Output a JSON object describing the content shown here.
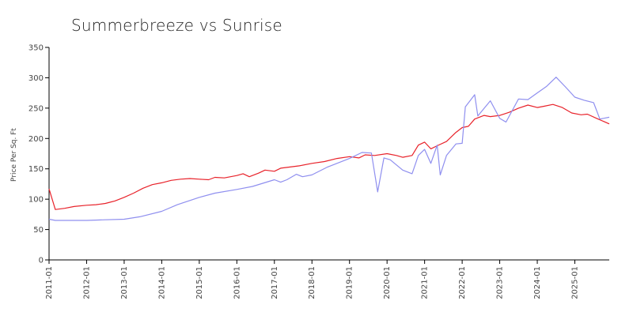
{
  "chart_data": {
    "type": "line",
    "title": "Summerbreeze vs Sunrise",
    "xlabel": "",
    "ylabel": "Price Per Sq. Ft",
    "x_start": "2011-01",
    "x_end": "2025-12",
    "ylim": [
      0,
      350
    ],
    "yticks": [
      0,
      50,
      100,
      150,
      200,
      250,
      300,
      350
    ],
    "xticks": [
      "2011-01",
      "2012-01",
      "2013-01",
      "2014-01",
      "2015-01",
      "2016-01",
      "2017-01",
      "2018-01",
      "2019-01",
      "2020-01",
      "2021-01",
      "2022-01",
      "2023-01",
      "2024-01",
      "2025-01"
    ],
    "grid": false,
    "legend": "none",
    "series": [
      {
        "color": "#e8222a",
        "points": [
          [
            "2011-01",
            117
          ],
          [
            "2011-03",
            83
          ],
          [
            "2011-06",
            85
          ],
          [
            "2011-09",
            88
          ],
          [
            "2012-01",
            90
          ],
          [
            "2012-04",
            91
          ],
          [
            "2012-07",
            93
          ],
          [
            "2012-10",
            97
          ],
          [
            "2013-01",
            103
          ],
          [
            "2013-04",
            110
          ],
          [
            "2013-07",
            118
          ],
          [
            "2013-10",
            124
          ],
          [
            "2014-01",
            127
          ],
          [
            "2014-04",
            131
          ],
          [
            "2014-07",
            133
          ],
          [
            "2014-10",
            134
          ],
          [
            "2015-01",
            133
          ],
          [
            "2015-04",
            132
          ],
          [
            "2015-06",
            136
          ],
          [
            "2015-09",
            135
          ],
          [
            "2016-01",
            139
          ],
          [
            "2016-03",
            142
          ],
          [
            "2016-05",
            137
          ],
          [
            "2016-08",
            143
          ],
          [
            "2016-10",
            148
          ],
          [
            "2017-01",
            146
          ],
          [
            "2017-03",
            151
          ],
          [
            "2017-06",
            153
          ],
          [
            "2017-09",
            155
          ],
          [
            "2018-01",
            159
          ],
          [
            "2018-05",
            162
          ],
          [
            "2018-09",
            167
          ],
          [
            "2019-01",
            170
          ],
          [
            "2019-04",
            168
          ],
          [
            "2019-06",
            173
          ],
          [
            "2019-09",
            172
          ],
          [
            "2020-01",
            175
          ],
          [
            "2020-04",
            172
          ],
          [
            "2020-06",
            169
          ],
          [
            "2020-09",
            172
          ],
          [
            "2020-11",
            189
          ],
          [
            "2021-01",
            194
          ],
          [
            "2021-03",
            183
          ],
          [
            "2021-05",
            188
          ],
          [
            "2021-08",
            195
          ],
          [
            "2021-11",
            210
          ],
          [
            "2022-01",
            218
          ],
          [
            "2022-03",
            220
          ],
          [
            "2022-05",
            232
          ],
          [
            "2022-08",
            238
          ],
          [
            "2022-10",
            236
          ],
          [
            "2023-01",
            238
          ],
          [
            "2023-04",
            243
          ],
          [
            "2023-07",
            250
          ],
          [
            "2023-10",
            255
          ],
          [
            "2024-01",
            251
          ],
          [
            "2024-03",
            253
          ],
          [
            "2024-06",
            256
          ],
          [
            "2024-09",
            251
          ],
          [
            "2024-12",
            242
          ],
          [
            "2025-03",
            239
          ],
          [
            "2025-05",
            240
          ],
          [
            "2025-08",
            233
          ],
          [
            "2025-12",
            224
          ]
        ]
      },
      {
        "color": "#8f8fef",
        "points": [
          [
            "2011-01",
            67
          ],
          [
            "2011-03",
            65
          ],
          [
            "2011-06",
            65
          ],
          [
            "2012-01",
            65
          ],
          [
            "2012-06",
            66
          ],
          [
            "2013-01",
            67
          ],
          [
            "2013-06",
            71
          ],
          [
            "2014-01",
            80
          ],
          [
            "2014-06",
            91
          ],
          [
            "2015-01",
            103
          ],
          [
            "2015-06",
            110
          ],
          [
            "2016-01",
            116
          ],
          [
            "2016-06",
            121
          ],
          [
            "2017-01",
            132
          ],
          [
            "2017-03",
            128
          ],
          [
            "2017-05",
            132
          ],
          [
            "2017-08",
            141
          ],
          [
            "2017-10",
            137
          ],
          [
            "2018-01",
            140
          ],
          [
            "2018-06",
            153
          ],
          [
            "2019-01",
            167
          ],
          [
            "2019-05",
            177
          ],
          [
            "2019-08",
            176
          ],
          [
            "2019-10",
            112
          ],
          [
            "2019-12",
            168
          ],
          [
            "2020-02",
            165
          ],
          [
            "2020-06",
            148
          ],
          [
            "2020-09",
            142
          ],
          [
            "2020-11",
            172
          ],
          [
            "2021-01",
            182
          ],
          [
            "2021-03",
            159
          ],
          [
            "2021-05",
            189
          ],
          [
            "2021-06",
            140
          ],
          [
            "2021-08",
            172
          ],
          [
            "2021-11",
            191
          ],
          [
            "2022-01",
            192
          ],
          [
            "2022-02",
            252
          ],
          [
            "2022-05",
            272
          ],
          [
            "2022-06",
            237
          ],
          [
            "2022-10",
            262
          ],
          [
            "2023-01",
            233
          ],
          [
            "2023-03",
            227
          ],
          [
            "2023-07",
            265
          ],
          [
            "2023-10",
            264
          ],
          [
            "2024-01",
            275
          ],
          [
            "2024-04",
            286
          ],
          [
            "2024-07",
            301
          ],
          [
            "2024-10",
            285
          ],
          [
            "2025-01",
            268
          ],
          [
            "2025-04",
            263
          ],
          [
            "2025-07",
            259
          ],
          [
            "2025-09",
            232
          ],
          [
            "2025-12",
            235
          ]
        ]
      }
    ]
  }
}
